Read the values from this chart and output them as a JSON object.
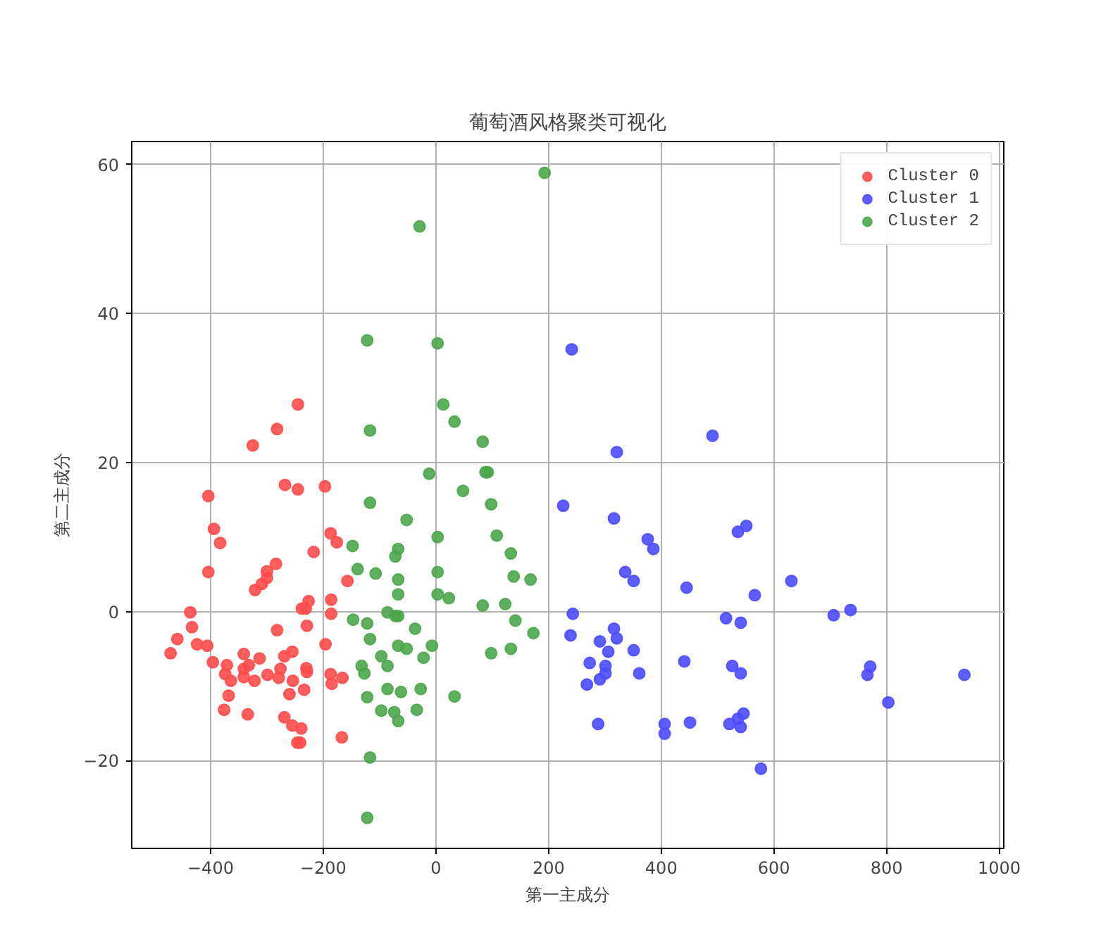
{
  "chart_data": {
    "type": "scatter",
    "title": "葡萄酒风格聚类可视化",
    "xlabel": "第一主成分",
    "ylabel": "第二主成分",
    "xlim": [
      -540,
      1008
    ],
    "ylim": [
      -31.8,
      63.1
    ],
    "xticks": [
      {
        "value": -400,
        "label": "−400"
      },
      {
        "value": -200,
        "label": "−200"
      },
      0,
      200,
      400,
      600,
      800,
      1000
    ],
    "yticks": [
      {
        "value": -20,
        "label": "−20"
      },
      0,
      20,
      40,
      60
    ],
    "grid": true,
    "legend": "top right",
    "marker": "circle",
    "series": [
      {
        "name": "Cluster 0",
        "color": "#ff4d4d",
        "x": [
          -245,
          -282,
          -325,
          -404,
          -268,
          -245,
          -197,
          -394,
          -383,
          -187,
          -176,
          -217,
          -284,
          -300,
          -300,
          -309,
          -321,
          -404,
          -157,
          -226,
          -238,
          -231,
          -186,
          -186,
          -229,
          -282,
          -436,
          -433,
          -459,
          -471,
          -424,
          -406,
          -396,
          -371,
          -374,
          -364,
          -341,
          -332,
          -341,
          -341,
          -322,
          -313,
          -299,
          -279,
          -276,
          -269,
          -255,
          -254,
          -260,
          -234,
          -230,
          -229,
          -196,
          -187,
          -185,
          -166,
          -368,
          -376,
          -334,
          -269,
          -255,
          -239,
          -246,
          -241,
          -167
        ],
        "values": [
          27.8,
          24.5,
          22.3,
          15.5,
          17,
          16.4,
          16.8,
          11.1,
          9.2,
          10.5,
          9.3,
          8,
          6.4,
          5.4,
          4.5,
          3.7,
          2.9,
          5.3,
          4.1,
          1.4,
          0.4,
          0.4,
          1.6,
          -0.3,
          -1.9,
          -2.5,
          -0.1,
          -2.1,
          -3.7,
          -5.6,
          -4.4,
          -4.6,
          -6.8,
          -7.2,
          -8.4,
          -9.3,
          -5.7,
          -7.2,
          -7.7,
          -8.8,
          -9.3,
          -6.3,
          -8.5,
          -8.9,
          -7.7,
          -6.0,
          -5.4,
          -9.3,
          -11.1,
          -10.5,
          -7.6,
          -8.1,
          -4.4,
          -8.4,
          -9.7,
          -8.9,
          -11.3,
          -13.2,
          -13.8,
          -14.2,
          -15.3,
          -15.7,
          -17.6,
          -17.6,
          -16.9
        ]
      },
      {
        "name": "Cluster 1",
        "color": "#4d4dff",
        "x": [
          241,
          491,
          321,
          226,
          316,
          376,
          386,
          536,
          551,
          336,
          351,
          445,
          631,
          566,
          243,
          515,
          541,
          706,
          736,
          239,
          316,
          321,
          291,
          306,
          351,
          273,
          301,
          301,
          291,
          268,
          361,
          441,
          526,
          541,
          771,
          766,
          938,
          803,
          288,
          406,
          406,
          451,
          521,
          536,
          546,
          541,
          577
        ],
        "values": [
          35.2,
          23.6,
          21.4,
          14.2,
          12.5,
          9.7,
          8.4,
          10.7,
          11.5,
          5.3,
          4.1,
          3.2,
          4.1,
          2.2,
          -0.3,
          -0.9,
          -1.5,
          -0.5,
          0.2,
          -3.2,
          -2.3,
          -3.6,
          -4.0,
          -5.4,
          -5.2,
          -6.9,
          -7.3,
          -8.3,
          -9.1,
          -9.8,
          -8.3,
          -6.7,
          -7.3,
          -8.3,
          -7.4,
          -8.5,
          -8.5,
          -12.2,
          -15.1,
          -15.1,
          -16.4,
          -14.9,
          -15.1,
          -14.4,
          -13.7,
          -15.5,
          -21.1
        ]
      },
      {
        "name": "Cluster 2",
        "color": "#4da64d",
        "x": [
          193,
          -29,
          -122,
          3,
          13,
          33,
          83,
          -117,
          88,
          92,
          -12,
          48,
          98,
          -117,
          -52,
          108,
          3,
          -148,
          -67,
          -72,
          133,
          -139,
          -107,
          138,
          168,
          3,
          -67,
          -67,
          3,
          23,
          83,
          123,
          -86,
          -72,
          -67,
          -147,
          -122,
          -117,
          -37,
          141,
          173,
          -7,
          -67,
          -52,
          -97,
          -86,
          -22,
          98,
          133,
          -132,
          -127,
          -122,
          -86,
          -62,
          -27,
          33,
          -97,
          -74,
          -67,
          -34,
          -117,
          -122
        ],
        "values": [
          58.9,
          51.7,
          36.4,
          36,
          27.8,
          25.5,
          22.8,
          24.3,
          18.7,
          18.7,
          18.5,
          16.2,
          14.4,
          14.6,
          12.3,
          10.2,
          10,
          8.8,
          8.4,
          7.4,
          7.8,
          5.7,
          5.1,
          4.7,
          4.3,
          5.3,
          4.3,
          2.3,
          2.3,
          1.8,
          0.8,
          1.0,
          -0.1,
          -0.6,
          -0.6,
          -1.1,
          -1.6,
          -3.7,
          -2.3,
          -1.2,
          -2.9,
          -4.6,
          -4.6,
          -5.0,
          -6.0,
          -7.3,
          -6.2,
          -5.6,
          -5.0,
          -7.3,
          -8.3,
          -11.5,
          -10.4,
          -10.8,
          -10.4,
          -11.4,
          -13.3,
          -13.5,
          -14.7,
          -13.2,
          -19.6,
          -27.7
        ]
      }
    ]
  }
}
